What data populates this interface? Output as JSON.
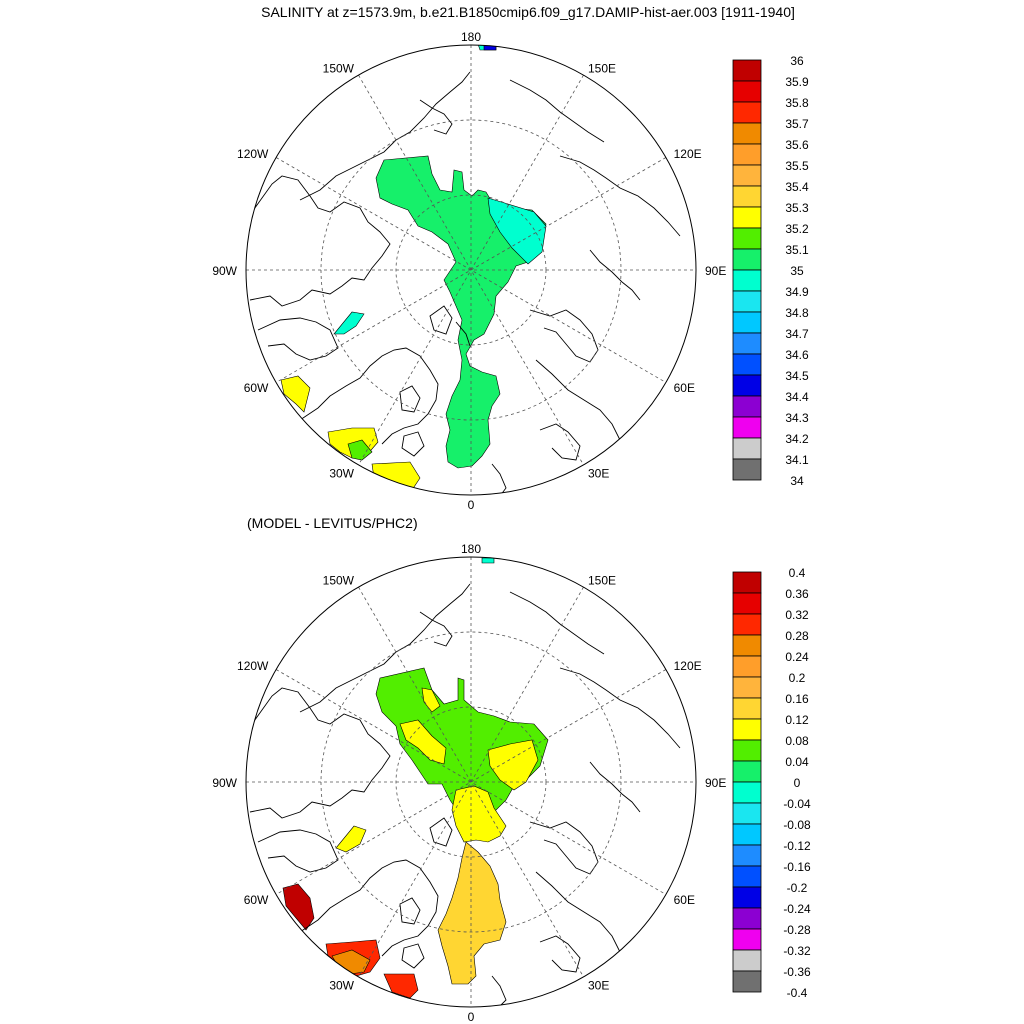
{
  "title": "SALINITY at z=1573.9m, b.e21.B1850cmip6.f09_g17.DAMIP-hist-aer.003 [1911-1940]",
  "subtitle": "(MODEL - LEVITUS/PHC2)",
  "lon_labels": [
    "180",
    "150E",
    "120E",
    "90E",
    "60E",
    "30E",
    "0",
    "30W",
    "60W",
    "90W",
    "120W",
    "150W"
  ],
  "top_colorbar": {
    "labels": [
      "36",
      "35.9",
      "35.8",
      "35.7",
      "35.6",
      "35.5",
      "35.4",
      "35.3",
      "35.2",
      "35.1",
      "35",
      "34.9",
      "34.8",
      "34.7",
      "34.6",
      "34.5",
      "34.4",
      "34.3",
      "34.2",
      "34.1",
      "34"
    ],
    "colors": [
      "#c00000",
      "#e60000",
      "#ff2800",
      "#f08a00",
      "#ff9e2a",
      "#ffb43c",
      "#ffd632",
      "#ffff00",
      "#52ee00",
      "#16f06a",
      "#00ffcf",
      "#1ae6f0",
      "#00c8ff",
      "#1e8cff",
      "#0050ff",
      "#0000e6",
      "#8c00d2",
      "#ef00ef",
      "#cccccc",
      "#707070"
    ]
  },
  "bottom_colorbar": {
    "labels": [
      "0.4",
      "0.36",
      "0.32",
      "0.28",
      "0.24",
      "0.2",
      "0.16",
      "0.12",
      "0.08",
      "0.04",
      "0",
      "-0.04",
      "-0.08",
      "-0.12",
      "-0.16",
      "-0.2",
      "-0.24",
      "-0.28",
      "-0.32",
      "-0.36",
      "-0.4"
    ],
    "colors": [
      "#c00000",
      "#e60000",
      "#ff2800",
      "#f08a00",
      "#ff9e2a",
      "#ffb43c",
      "#ffd632",
      "#ffff00",
      "#52ee00",
      "#16f06a",
      "#00ffcf",
      "#1ae6f0",
      "#00c8ff",
      "#1e8cff",
      "#0050ff",
      "#0000e6",
      "#8c00d2",
      "#ef00ef",
      "#cccccc",
      "#707070"
    ]
  },
  "colors": {
    "top_main": "#16f06a",
    "top_cyan": "#00ffcf",
    "top_yellow": "#ffff00",
    "top_green": "#52ee00",
    "top_blue": "#0000e6",
    "bot_green": "#52ee00",
    "bot_yellow": "#ffff00",
    "bot_lightorange": "#ffd632",
    "bot_darkred": "#c00000",
    "bot_red": "#ff2800",
    "bot_orange": "#f08a00",
    "bot_cyan": "#00ffcf"
  }
}
